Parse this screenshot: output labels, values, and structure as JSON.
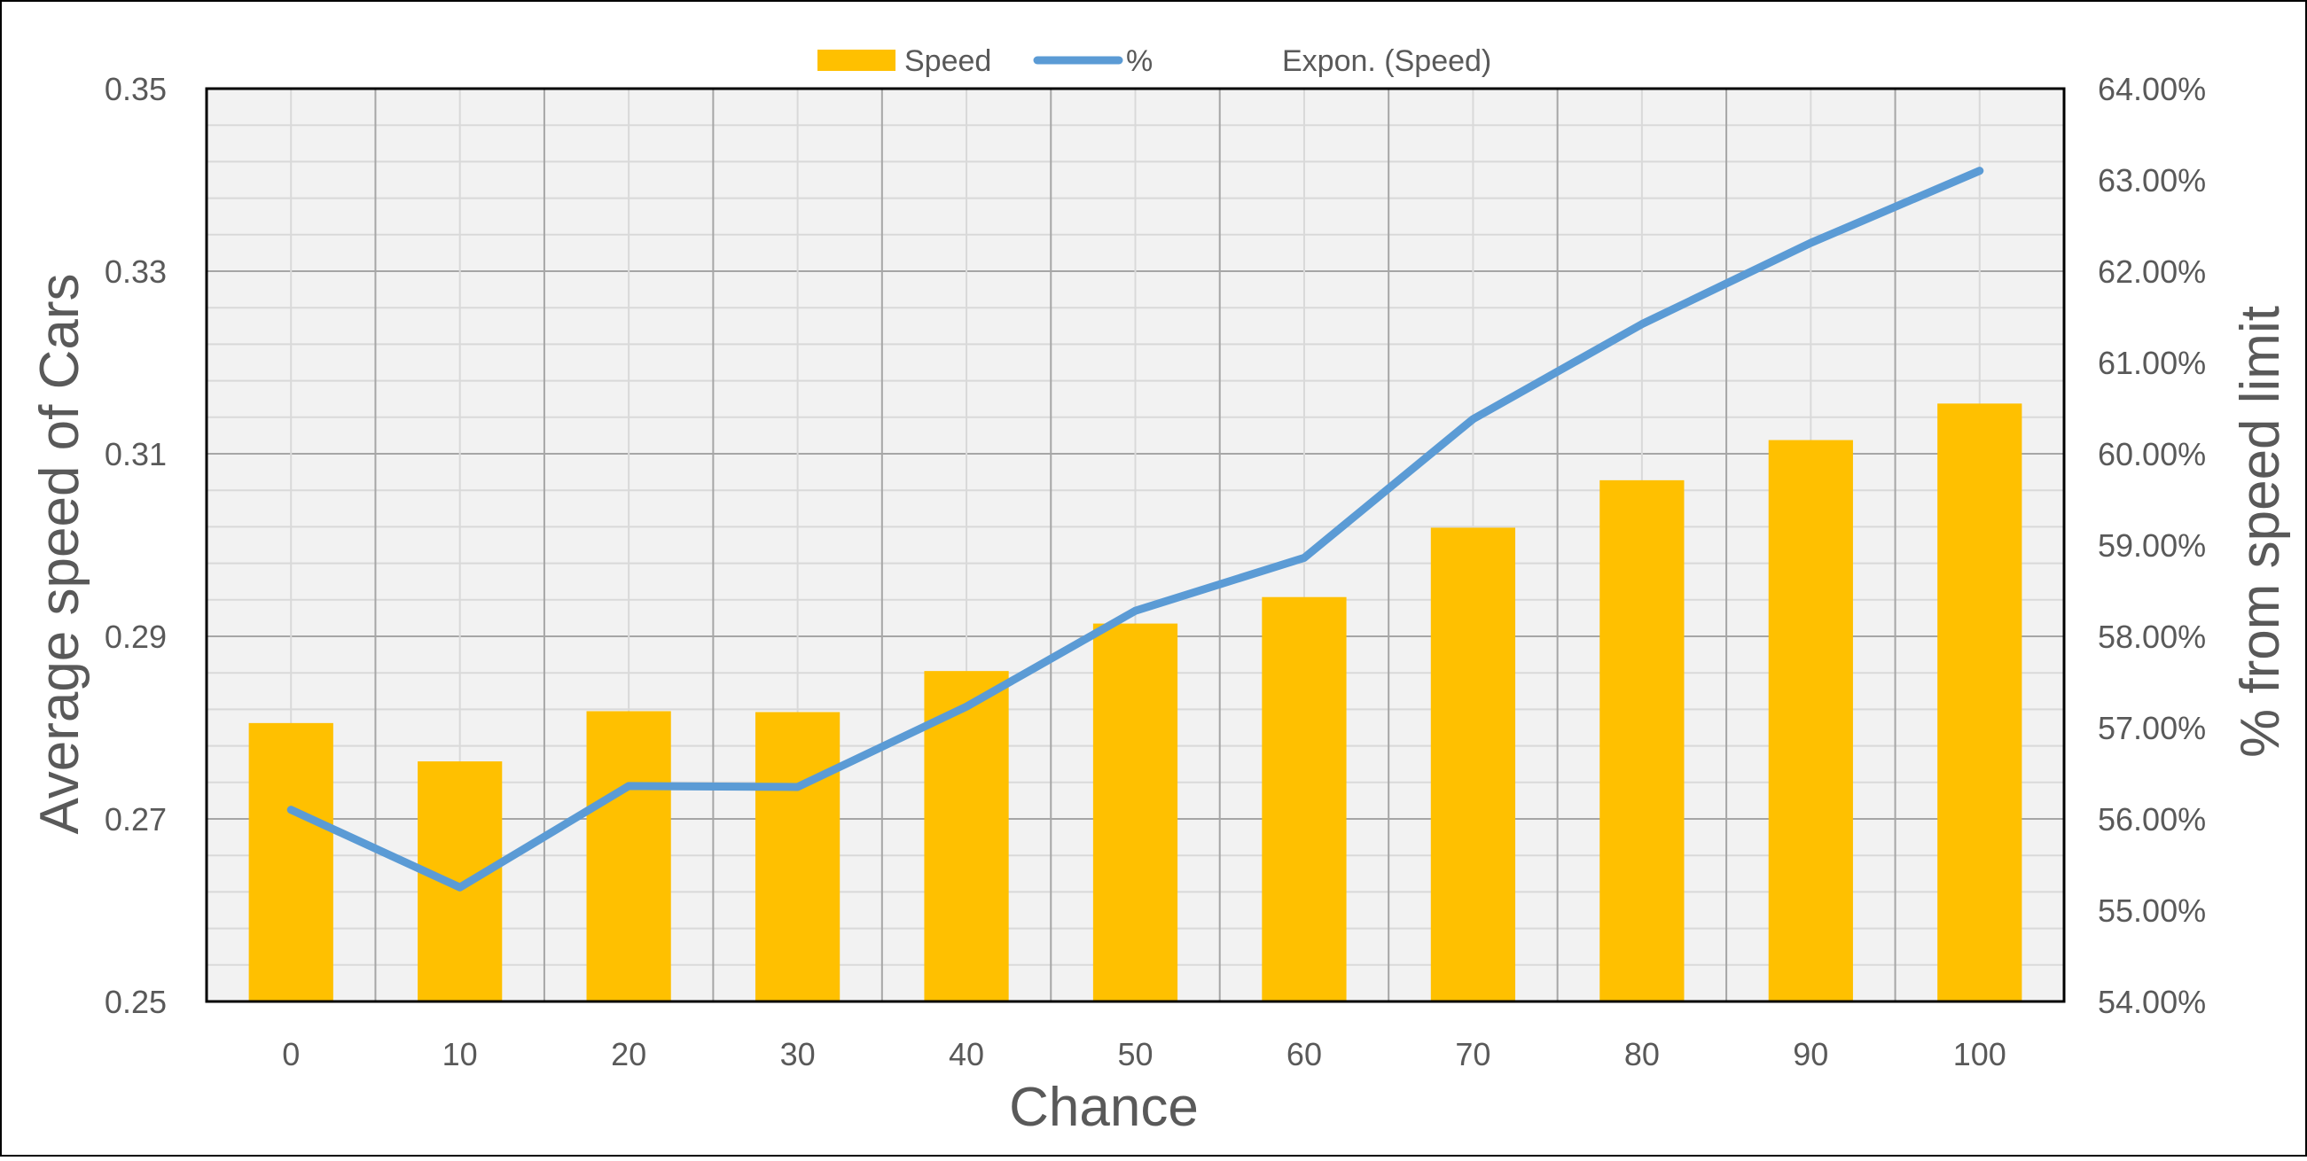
{
  "chart_data": {
    "type": "bar",
    "categories": [
      "0",
      "10",
      "20",
      "30",
      "40",
      "50",
      "60",
      "70",
      "80",
      "90",
      "100"
    ],
    "series": [
      {
        "name": "Speed",
        "type": "bar",
        "axis": "left",
        "values": [
          0.2805,
          0.2763,
          0.2818,
          0.2817,
          0.2862,
          0.2914,
          0.2943,
          0.3019,
          0.3071,
          0.3115,
          0.3155
        ]
      },
      {
        "name": "%",
        "type": "line",
        "axis": "right",
        "values": [
          56.1,
          55.25,
          56.36,
          56.35,
          57.23,
          58.28,
          58.86,
          60.38,
          61.42,
          62.31,
          63.1
        ]
      }
    ],
    "legend": [
      "Speed",
      "%",
      "Expon. (Speed)"
    ],
    "xlabel": "Chance",
    "ylabel": "Average speed of Cars",
    "y2label": "% from speed limit",
    "ylim": [
      0.25,
      0.35
    ],
    "y2lim": [
      54,
      64
    ],
    "yticks": [
      "0.25",
      "0.27",
      "0.29",
      "0.31",
      "0.33",
      "0.35"
    ],
    "y2ticks": [
      "54.00%",
      "55.00%",
      "56.00%",
      "57.00%",
      "58.00%",
      "59.00%",
      "60.00%",
      "61.00%",
      "62.00%",
      "63.00%",
      "64.00%"
    ],
    "grid": true,
    "legend_position": "top",
    "colors": {
      "bar": "#FFC000",
      "line": "#5B9BD5",
      "plot_bg": "#F2F2F2",
      "grid_major": "#A6A6A6",
      "grid_minor": "#D9D9D9",
      "frame": "#000000",
      "text": "#595959"
    }
  }
}
